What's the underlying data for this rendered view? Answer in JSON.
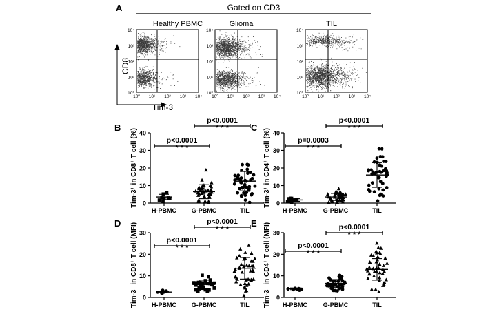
{
  "flow": {
    "panel_letter": "A",
    "header": "Gated on CD3",
    "plots": [
      "Healthy  PBMC",
      "Glioma",
      "TIL"
    ],
    "y_axis": "CD8",
    "x_axis": "Tim-3",
    "y_ticks": [
      "10⁰",
      "10¹",
      "10²",
      "10³",
      "10⁴"
    ],
    "x_ticks": [
      "10⁰",
      "10¹",
      "10²",
      "10³",
      "10⁴"
    ],
    "dot_color": "#3a3a3a"
  },
  "panels": {
    "B": {
      "letter": "B",
      "ylabel_html": "Tim-3<tspan baseline-shift=\"super\" font-size=\"7\">+</tspan> in CD8<tspan baseline-shift=\"super\" font-size=\"7\">+</tspan> T cell  (%)",
      "ymax": 40,
      "yticks": [
        "0",
        "10",
        "20",
        "30",
        "40"
      ],
      "categories": [
        "H-PBMC",
        "G-PBMC",
        "TIL"
      ],
      "comparisons": [
        {
          "p": "p<0.0001",
          "stars": "* * *",
          "from": 0,
          "to": 1
        },
        {
          "p": "p<0.0001",
          "stars": "* * *",
          "from": 1,
          "to": 2
        }
      ]
    },
    "C": {
      "letter": "C",
      "ylabel_html": "Tim-3<tspan baseline-shift=\"super\" font-size=\"7\">+</tspan> in CD4<tspan baseline-shift=\"super\" font-size=\"7\">+</tspan> T cell  (%)",
      "ymax": 40,
      "yticks": [
        "0",
        "10",
        "20",
        "30",
        "40"
      ],
      "categories": [
        "H-PBMC",
        "G-PBMC",
        "TIL"
      ],
      "comparisons": [
        {
          "p": "p=0.0003",
          "stars": "* * *",
          "from": 0,
          "to": 1
        },
        {
          "p": "p<0.0001",
          "stars": "* * *",
          "from": 1,
          "to": 2
        }
      ]
    },
    "D": {
      "letter": "D",
      "ylabel_html": "Tim-3<tspan baseline-shift=\"super\" font-size=\"7\">+</tspan> in CD8<tspan baseline-shift=\"super\" font-size=\"7\">+</tspan> T cell  (MFI)",
      "ymax": 30,
      "yticks": [
        "0",
        "10",
        "20",
        "30"
      ],
      "categories": [
        "H-PBMC",
        "G-PBMC",
        "TIL"
      ],
      "comparisons": [
        {
          "p": "p<0.0001",
          "stars": "* * *",
          "from": 0,
          "to": 1
        },
        {
          "p": "p<0.0001",
          "stars": "* * *",
          "from": 1,
          "to": 2
        }
      ]
    },
    "E": {
      "letter": "E",
      "ylabel_html": "Tim-3<tspan baseline-shift=\"super\" font-size=\"7\">+</tspan> in CD4<tspan baseline-shift=\"super\" font-size=\"7\">+</tspan> T cell  (MFI)",
      "ymax": 30,
      "yticks": [
        "0",
        "10",
        "20",
        "30"
      ],
      "categories": [
        "H-PBMC",
        "G-PBMC",
        "TIL"
      ],
      "comparisons": [
        {
          "p": "p<0.0001",
          "stars": "* * *",
          "from": 0,
          "to": 1
        },
        {
          "p": "p<0.0001",
          "stars": "* * *",
          "from": 1,
          "to": 2
        }
      ]
    }
  },
  "chart_data": [
    {
      "type": "scatter",
      "panel": "B",
      "categories": [
        "H-PBMC",
        "G-PBMC",
        "TIL"
      ],
      "ylim": [
        0,
        40
      ],
      "series": [
        {
          "marker": "square",
          "mean": 3.5,
          "sd": 1.5,
          "n": 10
        },
        {
          "marker": "triangle",
          "mean": 6.5,
          "sd": 4.0,
          "n": 40
        },
        {
          "marker": "circle",
          "mean": 12.5,
          "sd": 5.5,
          "n": 45
        }
      ]
    },
    {
      "type": "scatter",
      "panel": "C",
      "categories": [
        "H-PBMC",
        "G-PBMC",
        "TIL"
      ],
      "ylim": [
        0,
        40
      ],
      "series": [
        {
          "marker": "square",
          "mean": 1.8,
          "sd": 0.8,
          "n": 10
        },
        {
          "marker": "triangle",
          "mean": 3.5,
          "sd": 2.0,
          "n": 40
        },
        {
          "marker": "circle",
          "mean": 16.0,
          "sd": 7.0,
          "n": 45
        }
      ]
    },
    {
      "type": "scatter",
      "panel": "D",
      "categories": [
        "H-PBMC",
        "G-PBMC",
        "TIL"
      ],
      "ylim": [
        0,
        30
      ],
      "series": [
        {
          "marker": "circle",
          "mean": 2.5,
          "sd": 0.4,
          "n": 10
        },
        {
          "marker": "square",
          "mean": 6.0,
          "sd": 2.0,
          "n": 40
        },
        {
          "marker": "triangle",
          "mean": 13.5,
          "sd": 5.0,
          "n": 45
        }
      ]
    },
    {
      "type": "scatter",
      "panel": "E",
      "categories": [
        "H-PBMC",
        "G-PBMC",
        "TIL"
      ],
      "ylim": [
        0,
        30
      ],
      "series": [
        {
          "marker": "circle",
          "mean": 4.0,
          "sd": 0.4,
          "n": 10
        },
        {
          "marker": "circle",
          "mean": 6.5,
          "sd": 1.8,
          "n": 40
        },
        {
          "marker": "triangle",
          "mean": 13.0,
          "sd": 5.0,
          "n": 45
        }
      ]
    }
  ]
}
